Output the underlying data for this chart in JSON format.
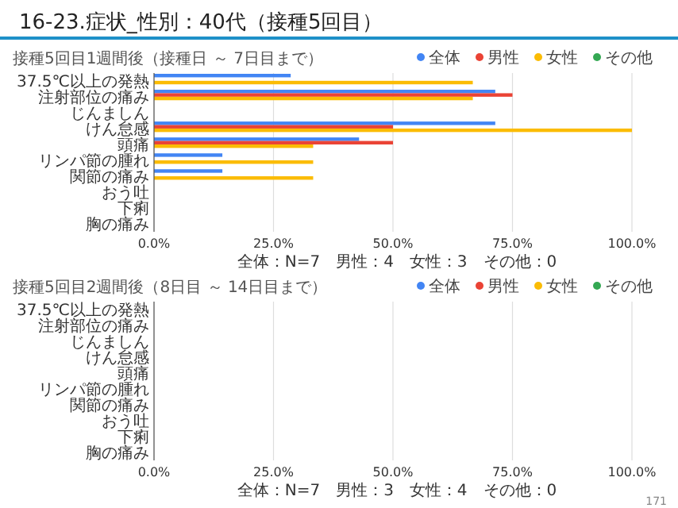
{
  "chart_data": [
    {
      "type": "bar",
      "orientation": "horizontal",
      "title": "16-23.症状_性別：40代（接種5回目）",
      "subtitle": "接種5回目1週間後（接種日 ～ 7日目まで）",
      "categories": [
        "37.5℃以上の発熱",
        "注射部位の痛み",
        "じんましん",
        "けん怠感",
        "頭痛",
        "リンパ節の腫れ",
        "関節の痛み",
        "おう吐",
        "下痢",
        "胸の痛み"
      ],
      "series": [
        {
          "name": "全体",
          "color": "#4285f4",
          "values": [
            28.6,
            71.4,
            0,
            71.4,
            42.9,
            14.3,
            14.3,
            0,
            0,
            0
          ]
        },
        {
          "name": "男性",
          "color": "#ea4335",
          "values": [
            0,
            75,
            0,
            50,
            50,
            0,
            0,
            0,
            0,
            0
          ]
        },
        {
          "name": "女性",
          "color": "#fbbc04",
          "values": [
            66.7,
            66.7,
            0,
            100,
            33.3,
            33.3,
            33.3,
            0,
            0,
            0
          ]
        },
        {
          "name": "その他",
          "color": "#34a853",
          "values": [
            0,
            0,
            0,
            0,
            0,
            0,
            0,
            0,
            0,
            0
          ]
        }
      ],
      "xlim": [
        0,
        100
      ],
      "xticks": [
        {
          "value": 0,
          "label": "0.0%"
        },
        {
          "value": 25,
          "label": "25.0%"
        },
        {
          "value": 50,
          "label": "50.0%"
        },
        {
          "value": 75,
          "label": "75.0%"
        },
        {
          "value": 100,
          "label": "100.0%"
        }
      ],
      "grid": "x",
      "legend": "top",
      "annotations": [
        "全体：N=7　男性：4　女性：3　その他：0"
      ]
    },
    {
      "type": "bar",
      "orientation": "horizontal",
      "title": "接種5回目2週間後（8日目 ～ 14日目まで）",
      "categories": [
        "37.5℃以上の発熱",
        "注射部位の痛み",
        "じんましん",
        "けん怠感",
        "頭痛",
        "リンパ節の腫れ",
        "関節の痛み",
        "おう吐",
        "下痢",
        "胸の痛み"
      ],
      "series": [
        {
          "name": "全体",
          "color": "#4285f4",
          "values": [
            0,
            0,
            0,
            0,
            0,
            0,
            0,
            0,
            0,
            0
          ]
        },
        {
          "name": "男性",
          "color": "#ea4335",
          "values": [
            0,
            0,
            0,
            0,
            0,
            0,
            0,
            0,
            0,
            0
          ]
        },
        {
          "name": "女性",
          "color": "#fbbc04",
          "values": [
            0,
            0,
            0,
            0,
            0,
            0,
            0,
            0,
            0,
            0
          ]
        },
        {
          "name": "その他",
          "color": "#34a853",
          "values": [
            0,
            0,
            0,
            0,
            0,
            0,
            0,
            0,
            0,
            0
          ]
        }
      ],
      "xlim": [
        0,
        100
      ],
      "xticks": [
        {
          "value": 0,
          "label": "0.0%"
        },
        {
          "value": 25,
          "label": "25.0%"
        },
        {
          "value": 50,
          "label": "50.0%"
        },
        {
          "value": 75,
          "label": "75.0%"
        },
        {
          "value": 100,
          "label": "100.0%"
        }
      ],
      "grid": "x",
      "legend": "top",
      "annotations": [
        "全体：N=7　男性：3　女性：4　その他：0",
        "171"
      ]
    }
  ]
}
